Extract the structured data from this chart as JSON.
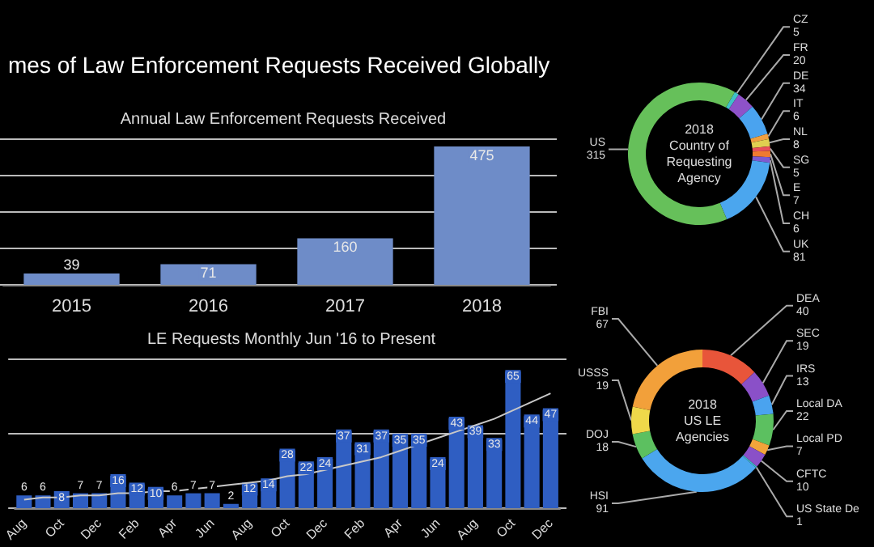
{
  "chart_data": [
    {
      "type": "bar",
      "title": "mes of Law Enforcement Requests Received Globally",
      "subtitle": "Annual Law Enforcement Requests Received",
      "categories": [
        "2015",
        "2016",
        "2017",
        "2018"
      ],
      "values": [
        39,
        71,
        160,
        475
      ],
      "color": "#6e8cc8",
      "data_labels": true,
      "ylim": [
        0,
        500
      ],
      "yticks": [
        0,
        {
          "value": 125,
          "label": null
        },
        {
          "value": 250,
          "label": null
        },
        {
          "value": 375,
          "label": null
        },
        {
          "value": 500,
          "label": null
        }
      ],
      "grid": "y",
      "tick_labels": "x"
    },
    {
      "type": "bar",
      "title": "LE Requests Monthly Jun '16 to Present",
      "categories": [
        "Aug",
        null,
        "Oct",
        null,
        "Dec",
        null,
        "Feb",
        null,
        "Apr",
        null,
        "Jun",
        null,
        "Aug",
        null,
        "Oct",
        null,
        "Dec",
        null,
        "Feb",
        null,
        "Apr",
        null,
        "Jun",
        null,
        "Aug",
        null,
        "Oct",
        null,
        "Dec"
      ],
      "series": [
        {
          "type": "bar",
          "color": "#2f5ec2",
          "values": [
            6,
            6,
            8,
            7,
            7,
            16,
            12,
            10,
            6,
            7,
            7,
            2,
            12,
            14,
            28,
            22,
            24,
            37,
            31,
            37,
            35,
            35,
            24,
            43,
            39,
            33,
            65,
            44,
            47
          ],
          "value_labels": [
            "6",
            "6",
            "8",
            "7",
            "7",
            "16",
            "12",
            "10",
            "6",
            "7",
            "7",
            "2",
            "12",
            "14",
            "28",
            "22",
            "24",
            "37",
            "31",
            "37",
            "35",
            "35",
            "24",
            "43",
            "39",
            "33",
            "65",
            "44",
            "47"
          ]
        },
        {
          "type": "line",
          "color": "#c8c8c8",
          "values": [
            4,
            5,
            5,
            6,
            6,
            7,
            7,
            8,
            8,
            9,
            10,
            11,
            12,
            13,
            15,
            16,
            18,
            20,
            22,
            24,
            27,
            30,
            33,
            36,
            39,
            42,
            46,
            50,
            54
          ]
        }
      ],
      "ylim": [
        0,
        70
      ],
      "yticks": [
        0,
        {
          "value": 35,
          "label": null
        },
        {
          "value": 70,
          "label": null
        }
      ],
      "grid": "y",
      "tick_labels": "x",
      "marker": "none"
    },
    {
      "type": "donut",
      "title": "2018\nCountry of\nRequesting\nAgency",
      "categories": [
        "CZ",
        "FR",
        "DE",
        "IT",
        "NL",
        "SG",
        "E",
        "CH",
        "UK",
        "US"
      ],
      "values": [
        5,
        20,
        34,
        6,
        8,
        5,
        7,
        6,
        81,
        315
      ],
      "colors": [
        "#3fc1c9",
        "#8e52c9",
        "#4aa3ef",
        "#f0a040",
        "#e0d050",
        "#e8505a",
        "#f07a30",
        "#7d5ad0",
        "#4ba6ee",
        "#66c05a"
      ],
      "data_labels": true
    },
    {
      "type": "donut",
      "title": "2018\nUS LE\nAgencies",
      "categories": [
        "DEA",
        "SEC",
        "IRS",
        "Local DA",
        "Local PD",
        "CFTC",
        "US State De",
        "HSI",
        "DOJ",
        "USSS",
        "FBI"
      ],
      "values": [
        40,
        19,
        13,
        22,
        7,
        10,
        1,
        91,
        18,
        19,
        67
      ],
      "colors": [
        "#e8553a",
        "#8a50c8",
        "#4aa3ef",
        "#5cc060",
        "#f3a43a",
        "#8a50c8",
        "#3fc1c9",
        "#4ba6ee",
        "#5cc060",
        "#efd84a",
        "#f2a03a"
      ],
      "data_labels": true
    }
  ]
}
